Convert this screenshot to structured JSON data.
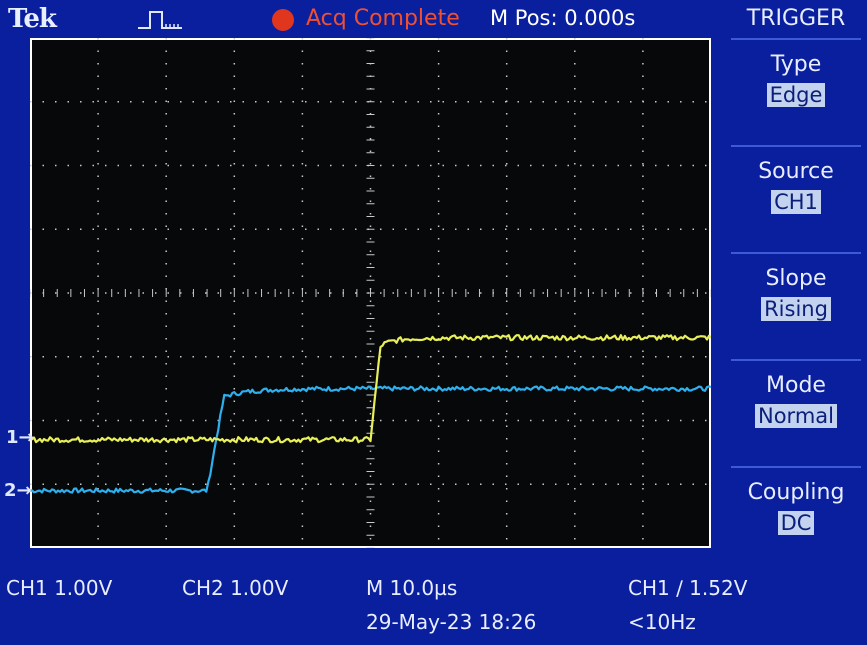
{
  "top_bar": {
    "brand": "Tek",
    "trigger_state_icon": "trigger-pulse-icon",
    "acq_indicator_color": "#e0361e",
    "acq_status": "Acq Complete",
    "m_pos": "M Pos: 0.000s"
  },
  "menu": {
    "title": "TRIGGER",
    "items": [
      {
        "label": "Type",
        "value": "Edge"
      },
      {
        "label": "Source",
        "value": "CH1"
      },
      {
        "label": "Slope",
        "value": "Rising"
      },
      {
        "label": "Mode",
        "value": "Normal"
      },
      {
        "label": "Coupling",
        "value": "DC"
      }
    ]
  },
  "channel_markers": {
    "ch1": "1",
    "ch2": "2"
  },
  "status": {
    "ch1_scale": "CH1  1.00V",
    "ch2_scale": "CH2  1.00V",
    "timebase": "M 10.0µs",
    "trigger_info": "CH1 ∕ 1.52V",
    "date": "29-May-23 18:26",
    "frequency": "<10Hz"
  },
  "colors": {
    "ch1_trace": "#e8ef5a",
    "ch2_trace": "#2fb0ee",
    "screen_bg": "#06080a",
    "frame_bg": "#0a1f9e"
  },
  "display": {
    "horizontal_divisions": 10,
    "vertical_divisions": 8,
    "grid": true
  },
  "waveforms": {
    "time_unit": "divisions",
    "ch1": {
      "low_div": 1.7,
      "high_div": 3.3,
      "edge_div": 5.0,
      "rise_div": 0.15,
      "noise_div": 0.08
    },
    "ch2": {
      "low_div": 0.9,
      "high_div": 2.5,
      "edge_div": 2.6,
      "rise_div": 0.25,
      "noise_div": 0.07
    }
  }
}
